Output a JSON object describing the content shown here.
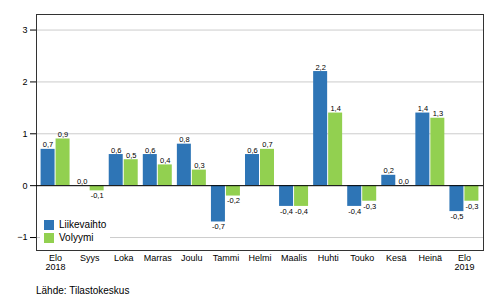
{
  "chart_data": {
    "type": "bar",
    "categories": [
      "Elo\n2018",
      "Syys",
      "Loka",
      "Marras",
      "Joulu",
      "Tammi",
      "Helmi",
      "Maalis",
      "Huhti",
      "Touko",
      "Kesä",
      "Heinä",
      "Elo\n2019"
    ],
    "series": [
      {
        "name": "Liikevaihto",
        "color": "#2E75B6",
        "values": [
          0.7,
          0.0,
          0.6,
          0.6,
          0.8,
          -0.7,
          0.6,
          -0.4,
          2.2,
          -0.4,
          0.2,
          1.4,
          -0.5
        ],
        "value_labels": [
          "0,7",
          "0,0",
          "0,6",
          "0,6",
          "0,8",
          "-0,7",
          "0,6",
          "-0,4",
          "2,2",
          "-0,4",
          "0,2",
          "1,4",
          "-0,5"
        ]
      },
      {
        "name": "Volyymi",
        "color": "#92D050",
        "values": [
          0.9,
          -0.1,
          0.5,
          0.4,
          0.3,
          -0.2,
          0.7,
          -0.4,
          1.4,
          -0.3,
          0.0,
          1.3,
          -0.3
        ],
        "value_labels": [
          "0,9",
          "-0,1",
          "0,5",
          "0,4",
          "0,3",
          "-0,2",
          "0,7",
          "-0,4",
          "1,4",
          "-0,3",
          "0,0",
          "1,3",
          "-0,3"
        ]
      }
    ],
    "ylim": [
      -1.25,
      3.3
    ],
    "yticks": [
      -1,
      0,
      1,
      2,
      3
    ],
    "grid": true,
    "legend": "lower left",
    "data_labels": true,
    "caption": "Lähde: Tilastokeskus"
  }
}
